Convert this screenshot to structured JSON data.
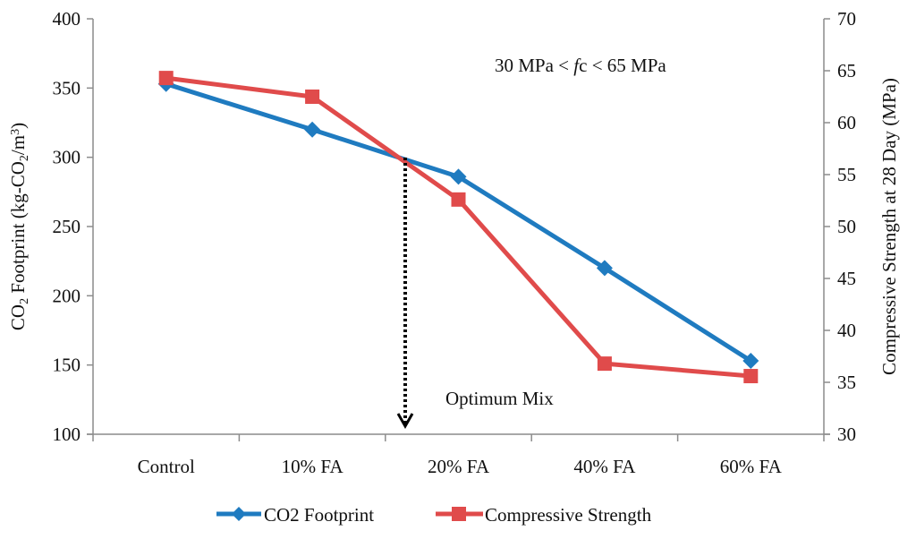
{
  "chart_data": {
    "type": "line",
    "title": "",
    "categories": [
      "Control",
      "10% FA",
      "20% FA",
      "40% FA",
      "60% FA"
    ],
    "xlabel": "",
    "series": [
      {
        "name": "CO2 Footprint",
        "axis": "left",
        "marker": "diamond",
        "color": "#1f7bc0",
        "values": [
          353,
          320,
          286,
          220,
          153
        ]
      },
      {
        "name": "Compressive Strength",
        "axis": "right",
        "marker": "square",
        "color": "#e04b4b",
        "values": [
          64.3,
          62.5,
          52.6,
          36.8,
          35.6
        ]
      }
    ],
    "y_left": {
      "label_parts": [
        "CO",
        "2",
        " Footprint (kg-CO",
        "2",
        "/m",
        "3",
        ")"
      ],
      "label": "CO2 Footprint (kg-CO2/m3)",
      "ylim": [
        100,
        400
      ],
      "ticks": [
        "100",
        "150",
        "200",
        "250",
        "300",
        "350",
        "400"
      ]
    },
    "y_right": {
      "label": "Compressive Strength at 28 Day (MPa)",
      "ylim": [
        30,
        70
      ],
      "ticks": [
        "30",
        "35",
        "40",
        "45",
        "50",
        "55",
        "60",
        "65",
        "70"
      ]
    },
    "grid": false,
    "legend": {
      "placement": "bottom",
      "entries": [
        "CO2 Footprint",
        "Compressive Strength"
      ]
    },
    "annotations": {
      "range_note_prefix": "30 MPa < ",
      "range_note_italic": "f",
      "range_note_mid": "c",
      "range_note_suffix": " < 65 MPa",
      "optimum_label": "Optimum Mix",
      "optimum_position": 1.63
    },
    "axis_color": "#8c8c8c"
  }
}
